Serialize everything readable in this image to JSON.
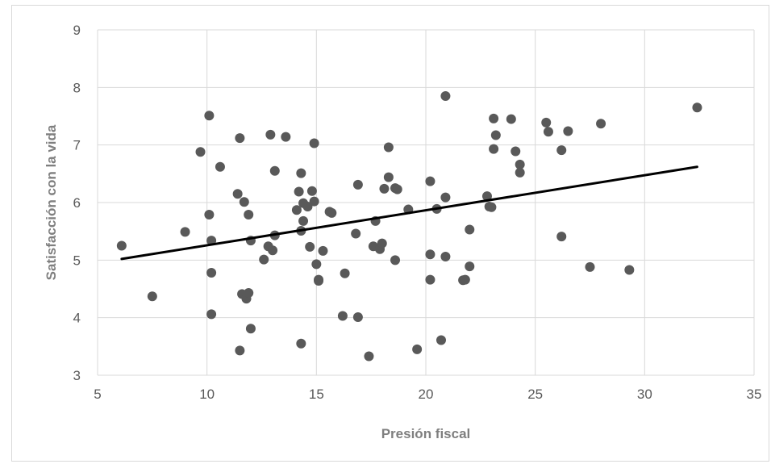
{
  "chart_data": {
    "type": "scatter",
    "title": "",
    "xlabel": "Presión fiscal",
    "ylabel": "Satisfacción con la vida",
    "xlim": [
      5,
      35
    ],
    "ylim": [
      3,
      9
    ],
    "x_ticks": [
      5,
      10,
      15,
      20,
      25,
      30,
      35
    ],
    "y_ticks": [
      3,
      4,
      5,
      6,
      7,
      8,
      9
    ],
    "grid": true,
    "legend": "none",
    "marker_color": "#595959",
    "trendline": {
      "type": "linear",
      "x": [
        6.1,
        32.4
      ],
      "y": [
        5.02,
        6.62
      ],
      "color": "#000000"
    },
    "series": [
      {
        "points": [
          [
            6.1,
            5.25
          ],
          [
            7.5,
            4.37
          ],
          [
            9.0,
            5.49
          ],
          [
            9.7,
            6.88
          ],
          [
            10.1,
            7.51
          ],
          [
            10.1,
            5.79
          ],
          [
            10.2,
            5.34
          ],
          [
            10.2,
            4.78
          ],
          [
            10.2,
            4.06
          ],
          [
            10.6,
            6.62
          ],
          [
            11.4,
            6.15
          ],
          [
            11.5,
            7.12
          ],
          [
            11.5,
            3.43
          ],
          [
            11.6,
            4.41
          ],
          [
            11.7,
            6.01
          ],
          [
            11.8,
            4.33
          ],
          [
            11.9,
            5.79
          ],
          [
            11.9,
            4.43
          ],
          [
            12.0,
            3.81
          ],
          [
            12.0,
            5.34
          ],
          [
            12.6,
            5.01
          ],
          [
            12.8,
            5.24
          ],
          [
            12.9,
            7.18
          ],
          [
            13.0,
            5.17
          ],
          [
            13.1,
            5.43
          ],
          [
            13.1,
            6.55
          ],
          [
            13.6,
            7.14
          ],
          [
            14.1,
            5.87
          ],
          [
            14.2,
            6.19
          ],
          [
            14.3,
            6.51
          ],
          [
            14.3,
            5.51
          ],
          [
            14.3,
            3.55
          ],
          [
            14.4,
            5.99
          ],
          [
            14.4,
            5.68
          ],
          [
            14.6,
            5.93
          ],
          [
            14.7,
            5.23
          ],
          [
            14.8,
            6.2
          ],
          [
            14.9,
            7.03
          ],
          [
            14.9,
            6.02
          ],
          [
            15.0,
            4.93
          ],
          [
            15.1,
            4.66
          ],
          [
            15.1,
            4.64
          ],
          [
            15.3,
            5.16
          ],
          [
            15.6,
            5.84
          ],
          [
            15.7,
            5.82
          ],
          [
            16.2,
            4.03
          ],
          [
            16.3,
            4.77
          ],
          [
            16.8,
            5.46
          ],
          [
            16.9,
            6.31
          ],
          [
            16.9,
            4.01
          ],
          [
            17.4,
            3.33
          ],
          [
            17.6,
            5.24
          ],
          [
            17.7,
            5.68
          ],
          [
            17.9,
            5.19
          ],
          [
            18.0,
            5.29
          ],
          [
            18.1,
            6.24
          ],
          [
            18.3,
            6.44
          ],
          [
            18.3,
            6.96
          ],
          [
            18.6,
            5.0
          ],
          [
            18.6,
            6.25
          ],
          [
            18.7,
            6.23
          ],
          [
            19.2,
            5.88
          ],
          [
            19.6,
            3.45
          ],
          [
            20.2,
            6.37
          ],
          [
            20.2,
            5.1
          ],
          [
            20.2,
            4.66
          ],
          [
            20.5,
            5.89
          ],
          [
            20.7,
            3.61
          ],
          [
            20.9,
            7.85
          ],
          [
            20.9,
            6.09
          ],
          [
            20.9,
            5.06
          ],
          [
            21.7,
            4.65
          ],
          [
            21.8,
            4.66
          ],
          [
            22.0,
            5.53
          ],
          [
            22.0,
            4.89
          ],
          [
            22.8,
            6.11
          ],
          [
            22.9,
            5.93
          ],
          [
            23.0,
            5.92
          ],
          [
            23.1,
            7.46
          ],
          [
            23.1,
            6.93
          ],
          [
            23.2,
            7.17
          ],
          [
            23.9,
            7.45
          ],
          [
            24.1,
            6.89
          ],
          [
            24.3,
            6.66
          ],
          [
            24.3,
            6.52
          ],
          [
            25.5,
            7.39
          ],
          [
            25.6,
            7.23
          ],
          [
            26.2,
            6.91
          ],
          [
            26.2,
            5.41
          ],
          [
            26.5,
            7.24
          ],
          [
            27.5,
            4.88
          ],
          [
            28.0,
            7.37
          ],
          [
            29.3,
            4.83
          ],
          [
            32.4,
            7.65
          ]
        ]
      }
    ]
  }
}
